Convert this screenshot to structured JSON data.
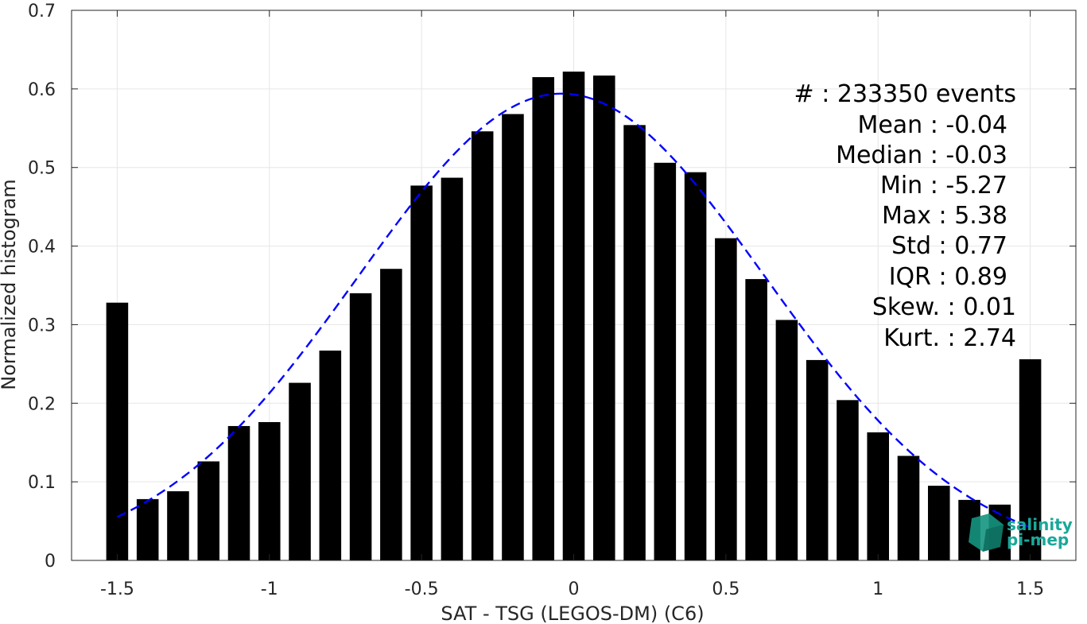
{
  "chart_data": {
    "type": "bar",
    "xlabel": "SAT - TSG (LEGOS-DM) (C6)",
    "ylabel": "Normalized histogram",
    "xlim": [
      -1.65,
      1.65
    ],
    "ylim": [
      0,
      0.7
    ],
    "xticks": [
      -1.5,
      -1,
      -0.5,
      0,
      0.5,
      1,
      1.5
    ],
    "xtick_labels": [
      "-1.5",
      "-1",
      "-0.5",
      "0",
      "0.5",
      "1",
      "1.5"
    ],
    "yticks": [
      0,
      0.1,
      0.2,
      0.3,
      0.4,
      0.5,
      0.6,
      0.7
    ],
    "ytick_labels": [
      "0",
      "0.1",
      "0.2",
      "0.3",
      "0.4",
      "0.5",
      "0.6",
      "0.7"
    ],
    "grid": true,
    "bar_color": "#000000",
    "bars": [
      {
        "x": -1.5,
        "y": 0.328
      },
      {
        "x": -1.4,
        "y": 0.078
      },
      {
        "x": -1.3,
        "y": 0.088
      },
      {
        "x": -1.2,
        "y": 0.126
      },
      {
        "x": -1.1,
        "y": 0.171
      },
      {
        "x": -1.0,
        "y": 0.176
      },
      {
        "x": -0.9,
        "y": 0.226
      },
      {
        "x": -0.8,
        "y": 0.267
      },
      {
        "x": -0.7,
        "y": 0.34
      },
      {
        "x": -0.6,
        "y": 0.371
      },
      {
        "x": -0.5,
        "y": 0.477
      },
      {
        "x": -0.4,
        "y": 0.487
      },
      {
        "x": -0.3,
        "y": 0.546
      },
      {
        "x": -0.2,
        "y": 0.568
      },
      {
        "x": -0.1,
        "y": 0.615
      },
      {
        "x": 0.0,
        "y": 0.622
      },
      {
        "x": 0.1,
        "y": 0.617
      },
      {
        "x": 0.2,
        "y": 0.554
      },
      {
        "x": 0.3,
        "y": 0.506
      },
      {
        "x": 0.4,
        "y": 0.494
      },
      {
        "x": 0.5,
        "y": 0.41
      },
      {
        "x": 0.6,
        "y": 0.358
      },
      {
        "x": 0.7,
        "y": 0.306
      },
      {
        "x": 0.8,
        "y": 0.255
      },
      {
        "x": 0.9,
        "y": 0.204
      },
      {
        "x": 1.0,
        "y": 0.163
      },
      {
        "x": 1.1,
        "y": 0.133
      },
      {
        "x": 1.2,
        "y": 0.095
      },
      {
        "x": 1.3,
        "y": 0.077
      },
      {
        "x": 1.4,
        "y": 0.071
      },
      {
        "x": 1.5,
        "y": 0.256
      }
    ],
    "fit": {
      "type": "gaussian",
      "mean": -0.04,
      "std": 0.67,
      "peak": 0.594,
      "x_range": [
        -1.5,
        1.5
      ],
      "color": "#0000ff",
      "style": "dashed"
    },
    "stats": [
      {
        "label": "#  : 233350 events"
      },
      {
        "label": "Mean : -0.04"
      },
      {
        "label": "Median : -0.03"
      },
      {
        "label": "Min : -5.27"
      },
      {
        "label": "Max : 5.38"
      },
      {
        "label": "Std : 0.77"
      },
      {
        "label": "IQR : 0.89"
      },
      {
        "label": "Skew. : 0.01"
      },
      {
        "label": "Kurt. : 2.74"
      }
    ]
  },
  "logo": {
    "line1": "salinity",
    "line2": "pi-mep",
    "color": "#1aa89a"
  }
}
